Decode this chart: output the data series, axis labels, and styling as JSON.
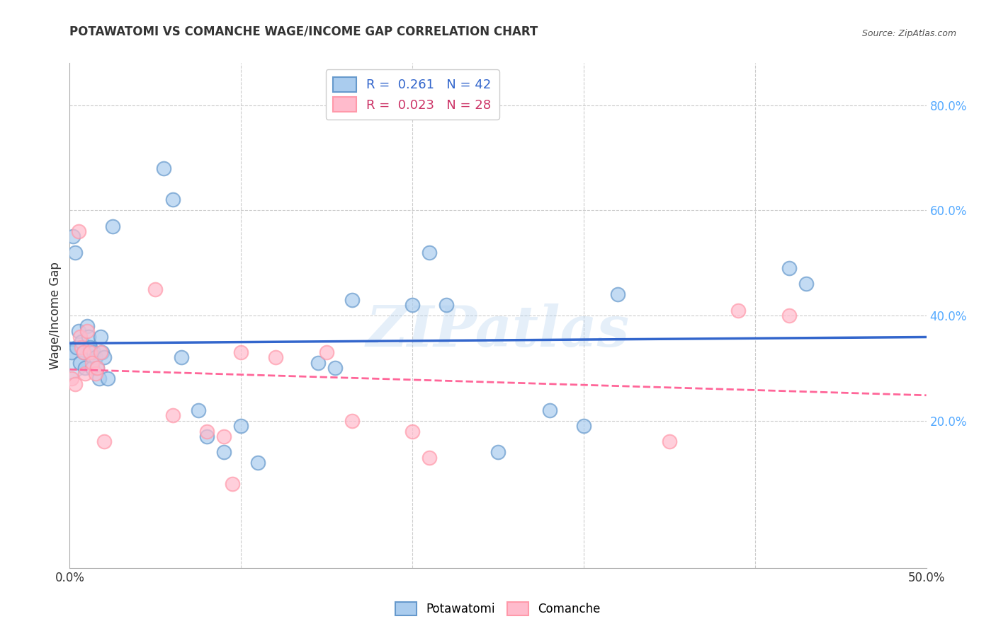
{
  "title": "POTAWATOMI VS COMANCHE WAGE/INCOME GAP CORRELATION CHART",
  "source": "Source: ZipAtlas.com",
  "ylabel": "Wage/Income Gap",
  "xlim": [
    0.0,
    0.5
  ],
  "ylim": [
    -0.08,
    0.88
  ],
  "yticks": [
    0.2,
    0.4,
    0.6,
    0.8
  ],
  "ytick_labels": [
    "20.0%",
    "40.0%",
    "60.0%",
    "80.0%"
  ],
  "xtick_positions": [
    0.0,
    0.1,
    0.2,
    0.3,
    0.4,
    0.5
  ],
  "watermark": "ZIPatlas",
  "legend_blue_R": "0.261",
  "legend_blue_N": "42",
  "legend_pink_R": "0.023",
  "legend_pink_N": "28",
  "blue_face": "#AACCEE",
  "blue_edge": "#6699CC",
  "pink_face": "#FFBBCC",
  "pink_edge": "#FF99AA",
  "blue_line_color": "#3366CC",
  "pink_line_color": "#FF6699",
  "potawatomi_x": [
    0.001,
    0.002,
    0.003,
    0.004,
    0.005,
    0.006,
    0.007,
    0.008,
    0.009,
    0.01,
    0.011,
    0.012,
    0.013,
    0.014,
    0.015,
    0.016,
    0.017,
    0.018,
    0.019,
    0.02,
    0.022,
    0.025,
    0.055,
    0.06,
    0.065,
    0.075,
    0.08,
    0.09,
    0.1,
    0.11,
    0.145,
    0.155,
    0.165,
    0.2,
    0.21,
    0.22,
    0.25,
    0.28,
    0.3,
    0.32,
    0.42,
    0.43
  ],
  "potawatomi_y": [
    0.33,
    0.55,
    0.52,
    0.34,
    0.37,
    0.31,
    0.35,
    0.33,
    0.3,
    0.38,
    0.36,
    0.34,
    0.3,
    0.33,
    0.32,
    0.3,
    0.28,
    0.36,
    0.33,
    0.32,
    0.28,
    0.57,
    0.68,
    0.62,
    0.32,
    0.22,
    0.17,
    0.14,
    0.19,
    0.12,
    0.31,
    0.3,
    0.43,
    0.42,
    0.52,
    0.42,
    0.14,
    0.22,
    0.19,
    0.44,
    0.49,
    0.46
  ],
  "potawatomi_big_x": [
    0.0
  ],
  "potawatomi_big_y": [
    0.315
  ],
  "comanche_x": [
    0.001,
    0.003,
    0.005,
    0.006,
    0.007,
    0.008,
    0.009,
    0.01,
    0.012,
    0.013,
    0.015,
    0.016,
    0.018,
    0.02,
    0.05,
    0.06,
    0.08,
    0.09,
    0.095,
    0.1,
    0.12,
    0.15,
    0.165,
    0.2,
    0.21,
    0.35,
    0.39,
    0.42
  ],
  "comanche_y": [
    0.28,
    0.27,
    0.56,
    0.36,
    0.34,
    0.33,
    0.29,
    0.37,
    0.33,
    0.31,
    0.29,
    0.3,
    0.33,
    0.16,
    0.45,
    0.21,
    0.18,
    0.17,
    0.08,
    0.33,
    0.32,
    0.33,
    0.2,
    0.18,
    0.13,
    0.16,
    0.41,
    0.4
  ],
  "bg_color": "#FFFFFF",
  "grid_color": "#CCCCCC",
  "dot_size": 200,
  "big_dot_size": 1400
}
